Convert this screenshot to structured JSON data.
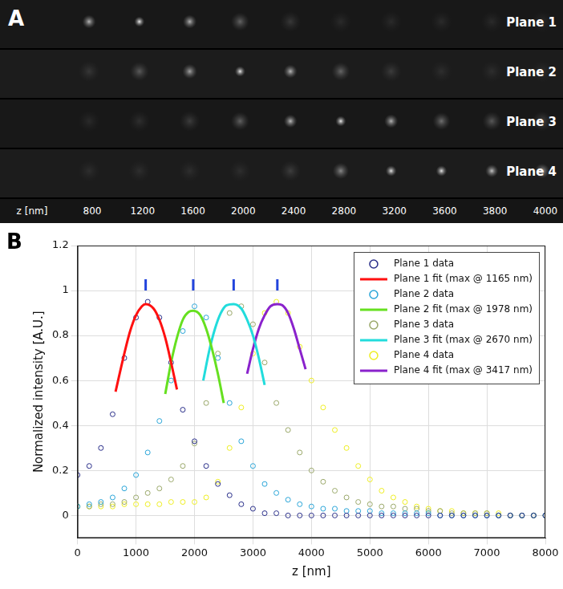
{
  "panel_a": {
    "label": "A",
    "rows": [
      "Plane 1",
      "Plane 2",
      "Plane 3",
      "Plane 4"
    ],
    "z_label": "z [nm]",
    "z_values": [
      800,
      1200,
      1600,
      2000,
      2400,
      2800,
      3200,
      3600,
      3800,
      4000
    ]
  },
  "chart_data": {
    "type": "scatter",
    "panel_label": "B",
    "x_label": "z [nm]",
    "y_label": "Normalized intensity [A.U.]",
    "xlim": [
      0,
      8000
    ],
    "xticks": [
      0,
      1000,
      2000,
      3000,
      4000,
      5000,
      6000,
      7000,
      8000
    ],
    "ylim": [
      -0.1,
      1.2
    ],
    "yticks": [
      0,
      0.2,
      0.4,
      0.6,
      0.8,
      1,
      1.2
    ],
    "grid": true,
    "legend": "top-right",
    "peak_marks": {
      "x": [
        1165,
        1978,
        2670,
        3417
      ],
      "y": [
        1.0,
        1.05
      ],
      "color": "#2244dd"
    },
    "series": [
      {
        "name": "Plane 1 data",
        "type": "scatter",
        "marker": "circle",
        "color": "#2a2f8a",
        "x": [
          0,
          200,
          400,
          600,
          800,
          1000,
          1200,
          1400,
          1600,
          1800,
          2000,
          2200,
          2400,
          2600,
          2800,
          3000,
          3200,
          3400,
          3600,
          3800,
          4000,
          4200,
          4400,
          4600,
          4800,
          5000,
          5200,
          5400,
          5600,
          5800,
          6000,
          6200,
          6400,
          6600,
          6800,
          7000,
          7200,
          7400,
          7600,
          7800,
          8000
        ],
        "values": [
          0.18,
          0.22,
          0.3,
          0.45,
          0.7,
          0.88,
          0.95,
          0.88,
          0.68,
          0.47,
          0.33,
          0.22,
          0.14,
          0.09,
          0.05,
          0.03,
          0.01,
          0.01,
          0,
          0,
          0,
          0,
          0,
          0,
          0,
          0,
          0,
          0,
          0,
          0,
          0,
          0,
          0,
          0,
          0,
          0,
          0,
          0,
          0,
          0,
          0
        ]
      },
      {
        "name": "Plane 1 fit (max @ 1165 nm)",
        "type": "line",
        "line_style": "solid",
        "color": "#ff1010",
        "x": [
          650,
          800,
          900,
          1000,
          1100,
          1165,
          1300,
          1400,
          1500,
          1600,
          1700
        ],
        "values": [
          0.55,
          0.72,
          0.82,
          0.89,
          0.93,
          0.94,
          0.92,
          0.87,
          0.79,
          0.68,
          0.56
        ]
      },
      {
        "name": "Plane 2 data",
        "type": "scatter",
        "marker": "circle",
        "color": "#2aa5d8",
        "x": [
          0,
          200,
          400,
          600,
          800,
          1000,
          1200,
          1400,
          1600,
          1800,
          2000,
          2200,
          2400,
          2600,
          2800,
          3000,
          3200,
          3400,
          3600,
          3800,
          4000,
          4200,
          4400,
          4600,
          4800,
          5000,
          5200,
          5400,
          5600,
          5800,
          6000,
          6200,
          6400,
          6600,
          6800,
          7000,
          7200,
          7400,
          7600,
          7800,
          8000
        ],
        "values": [
          0.04,
          0.05,
          0.06,
          0.08,
          0.12,
          0.18,
          0.28,
          0.42,
          0.6,
          0.82,
          0.93,
          0.88,
          0.7,
          0.5,
          0.33,
          0.22,
          0.14,
          0.1,
          0.07,
          0.05,
          0.04,
          0.03,
          0.03,
          0.02,
          0.02,
          0.02,
          0.01,
          0.01,
          0.01,
          0.01,
          0.01,
          0,
          0,
          0,
          0,
          0,
          0,
          0,
          0,
          0,
          0
        ]
      },
      {
        "name": "Plane 2 fit (max @ 1978 nm)",
        "type": "line",
        "line_style": "solid",
        "color": "#66e020",
        "x": [
          1500,
          1600,
          1700,
          1800,
          1900,
          1978,
          2100,
          2200,
          2300,
          2400,
          2500
        ],
        "values": [
          0.54,
          0.68,
          0.79,
          0.87,
          0.905,
          0.91,
          0.89,
          0.83,
          0.74,
          0.63,
          0.5
        ]
      },
      {
        "name": "Plane 3 data",
        "type": "scatter",
        "marker": "circle",
        "color": "#9aa86a",
        "x": [
          0,
          200,
          400,
          600,
          800,
          1000,
          1200,
          1400,
          1600,
          1800,
          2000,
          2200,
          2400,
          2600,
          2800,
          3000,
          3200,
          3400,
          3600,
          3800,
          4000,
          4200,
          4400,
          4600,
          4800,
          5000,
          5200,
          5400,
          5600,
          5800,
          6000,
          6200,
          6400,
          6600,
          6800,
          7000,
          7200,
          7400,
          7600,
          7800,
          8000
        ],
        "values": [
          0.04,
          0.04,
          0.05,
          0.05,
          0.06,
          0.08,
          0.1,
          0.12,
          0.16,
          0.22,
          0.32,
          0.5,
          0.72,
          0.9,
          0.93,
          0.85,
          0.68,
          0.5,
          0.38,
          0.28,
          0.2,
          0.15,
          0.11,
          0.08,
          0.06,
          0.05,
          0.04,
          0.04,
          0.03,
          0.03,
          0.02,
          0.02,
          0.01,
          0.01,
          0.01,
          0.01,
          0,
          0,
          0,
          0,
          0
        ]
      },
      {
        "name": "Plane 3 fit (max @ 2670 nm)",
        "type": "line",
        "line_style": "solid",
        "color": "#22dcdc",
        "x": [
          2150,
          2250,
          2350,
          2450,
          2550,
          2670,
          2800,
          2900,
          3000,
          3100,
          3200
        ],
        "values": [
          0.6,
          0.73,
          0.83,
          0.9,
          0.935,
          0.94,
          0.92,
          0.87,
          0.8,
          0.7,
          0.58
        ]
      },
      {
        "name": "Plane 4 data",
        "type": "scatter",
        "marker": "circle",
        "color": "#eeee22",
        "x": [
          0,
          200,
          400,
          600,
          800,
          1000,
          1200,
          1400,
          1600,
          1800,
          2000,
          2200,
          2400,
          2600,
          2800,
          3000,
          3200,
          3400,
          3600,
          3800,
          4000,
          4200,
          4400,
          4600,
          4800,
          5000,
          5200,
          5400,
          5600,
          5800,
          6000,
          6200,
          6400,
          6600,
          6800,
          7000,
          7200,
          7400,
          7600,
          7800,
          8000
        ],
        "values": [
          0.04,
          0.04,
          0.04,
          0.04,
          0.05,
          0.05,
          0.05,
          0.05,
          0.06,
          0.06,
          0.06,
          0.08,
          0.15,
          0.3,
          0.48,
          0.72,
          0.9,
          0.95,
          0.9,
          0.75,
          0.6,
          0.48,
          0.38,
          0.3,
          0.22,
          0.16,
          0.11,
          0.08,
          0.06,
          0.04,
          0.03,
          0.02,
          0.02,
          0.01,
          0.01,
          0.01,
          0.01,
          0,
          0,
          0,
          0
        ]
      },
      {
        "name": "Plane 4 fit (max @ 3417 nm)",
        "type": "line",
        "line_style": "solid",
        "color": "#8a22cc",
        "x": [
          2900,
          3000,
          3100,
          3200,
          3300,
          3417,
          3500,
          3600,
          3700,
          3800,
          3900
        ],
        "values": [
          0.63,
          0.74,
          0.83,
          0.89,
          0.93,
          0.94,
          0.935,
          0.9,
          0.83,
          0.74,
          0.65
        ]
      }
    ]
  }
}
